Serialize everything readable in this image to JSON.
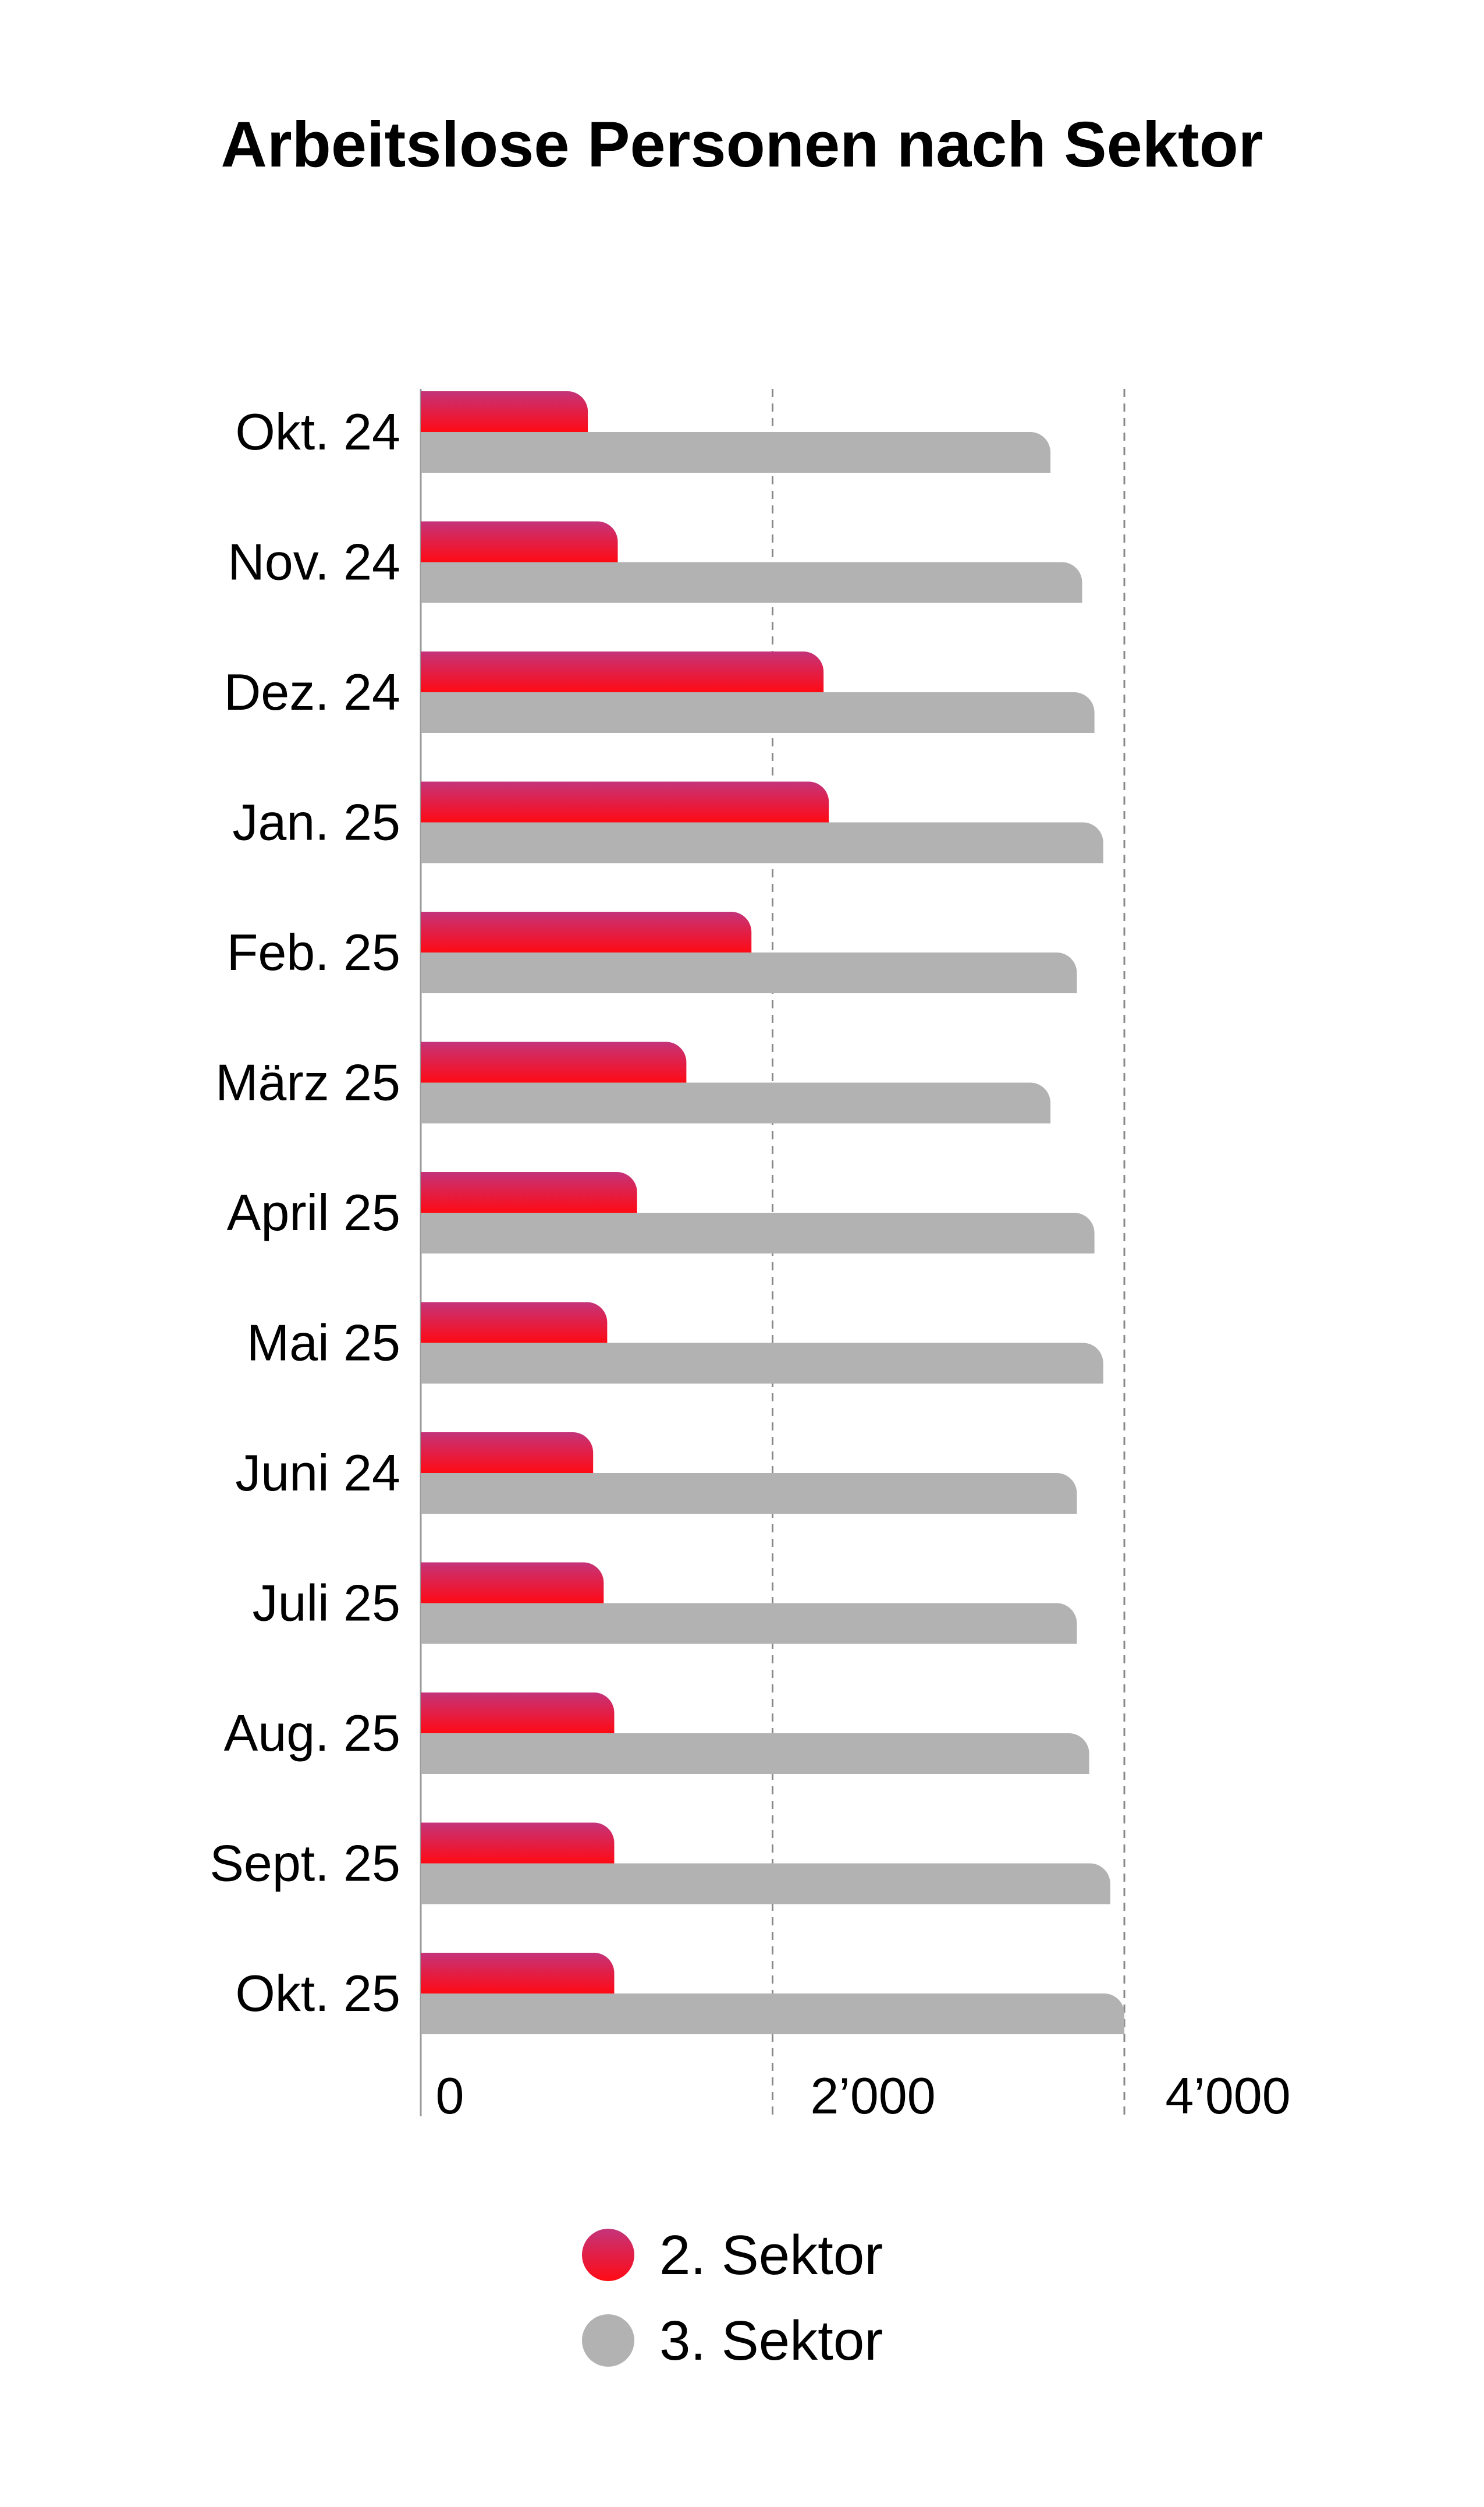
{
  "chart_data": {
    "type": "bar",
    "orientation": "horizontal",
    "title": "Arbeitslose Personen nach Sektor",
    "categories": [
      "Okt. 24",
      "Nov. 24",
      "Dez. 24",
      "Jan. 25",
      "Feb. 25",
      "März 25",
      "April 25",
      "Mai 25",
      "Juni 24",
      "Juli 25",
      "Aug. 25",
      "Sept. 25",
      "Okt. 25"
    ],
    "series": [
      {
        "name": "2. Sektor",
        "color_start": "#c4347a",
        "color_end": "#ff0a14",
        "values": [
          950,
          1120,
          2290,
          2320,
          1880,
          1510,
          1230,
          1060,
          980,
          1040,
          1100,
          1100,
          1100
        ]
      },
      {
        "name": "3. Sektor",
        "color": "#b2b2b2",
        "values": [
          3580,
          3760,
          3830,
          3880,
          3730,
          3580,
          3830,
          3880,
          3730,
          3730,
          3800,
          3920,
          4000
        ]
      }
    ],
    "xlim": [
      0,
      4000
    ],
    "xticks": [
      0,
      2000,
      4000
    ],
    "xtick_labels": [
      "0",
      "2’000",
      "4’000"
    ],
    "grid": "dashed vertical at 2’000 and 4’000",
    "legend_placement": "bottom-center"
  }
}
